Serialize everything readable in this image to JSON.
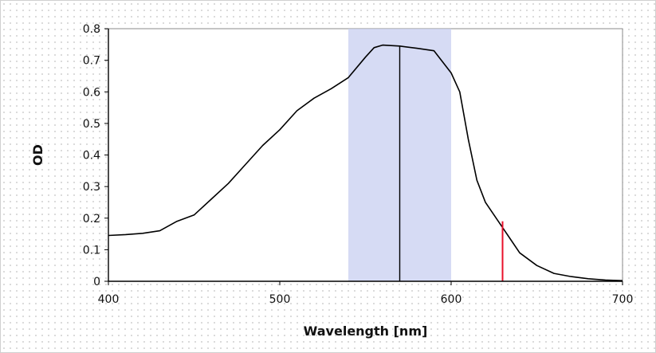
{
  "chart_data": {
    "type": "line",
    "title": "",
    "xlabel": "Wavelength [nm]",
    "ylabel": "OD",
    "xlim": [
      400,
      700
    ],
    "ylim": [
      0,
      0.8
    ],
    "x_ticks": [
      400,
      500,
      600,
      700
    ],
    "y_ticks": [
      0,
      0.1,
      0.2,
      0.3,
      0.4,
      0.5,
      0.6,
      0.7,
      0.8
    ],
    "x_tick_labels": [
      "400",
      "500",
      "600",
      "700"
    ],
    "y_tick_labels": [
      "0",
      "0.1",
      "0.2",
      "0.3",
      "0.4",
      "0.5",
      "0.6",
      "0.7",
      "0.8"
    ],
    "grid": false,
    "series": [
      {
        "x": [
          400,
          410,
          420,
          430,
          440,
          450,
          460,
          470,
          480,
          490,
          500,
          510,
          520,
          530,
          540,
          550,
          555,
          560,
          570,
          580,
          590,
          600,
          605,
          610,
          615,
          620,
          625,
          630,
          635,
          640,
          650,
          660,
          670,
          680,
          690,
          700
        ],
        "y": [
          0.145,
          0.148,
          0.152,
          0.16,
          0.19,
          0.21,
          0.26,
          0.31,
          0.37,
          0.43,
          0.48,
          0.54,
          0.58,
          0.61,
          0.645,
          0.71,
          0.74,
          0.748,
          0.745,
          0.738,
          0.73,
          0.66,
          0.6,
          0.45,
          0.32,
          0.25,
          0.21,
          0.17,
          0.13,
          0.09,
          0.05,
          0.025,
          0.015,
          0.008,
          0.004,
          0.002
        ],
        "color": "#000000"
      }
    ],
    "shaded_band": {
      "x_start": 540,
      "x_end": 600,
      "color": "#c8cff0"
    },
    "vertical_lines": [
      {
        "x": 570,
        "y_from": 0,
        "y_to": 0.745,
        "color": "#000000"
      },
      {
        "x": 630,
        "y_from": 0,
        "y_to": 0.19,
        "color": "#e8102a"
      }
    ]
  }
}
